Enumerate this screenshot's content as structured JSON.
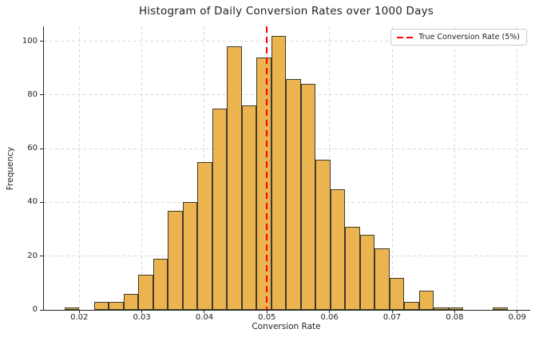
{
  "figure": {
    "title": "Histogram of Daily Conversion Rates over 1000 Days",
    "xlabel": "Conversion Rate",
    "ylabel": "Frequency",
    "legend_label": "True Conversion Rate (5%)"
  },
  "colors": {
    "bar_fill": "#EBB44E",
    "bar_edge": "#3E3A30",
    "true_rate_line": "#FF0000",
    "grid": "#D9D9D9",
    "axis": "#262626",
    "text": "#1F1F1F",
    "legend_border": "#CCCCCC"
  },
  "chart_data": {
    "type": "bar",
    "subtype": "histogram",
    "title": "Histogram of Daily Conversion Rates over 1000 Days",
    "xlabel": "Conversion Rate",
    "ylabel": "Frequency",
    "total_samples": 1000,
    "bin_start": 0.01766,
    "bin_width": 0.00236,
    "counts": [
      1,
      0,
      3,
      3,
      6,
      13,
      19,
      37,
      40,
      55,
      75,
      98,
      76,
      94,
      102,
      86,
      84,
      56,
      45,
      31,
      28,
      23,
      12,
      3,
      7,
      1,
      1,
      0,
      0,
      1
    ],
    "true_conversion_rate": 0.05,
    "vline_style": "red dashed",
    "x_ticks": [
      0.02,
      0.03,
      0.04,
      0.05,
      0.06,
      0.07,
      0.08,
      0.09
    ],
    "y_ticks": [
      0,
      20,
      40,
      60,
      80,
      100
    ],
    "x_range": [
      0.01435,
      0.09208
    ],
    "y_max": 105.5,
    "grid": true,
    "legend": {
      "label": "True Conversion Rate (5%)",
      "position": "upper right"
    }
  }
}
